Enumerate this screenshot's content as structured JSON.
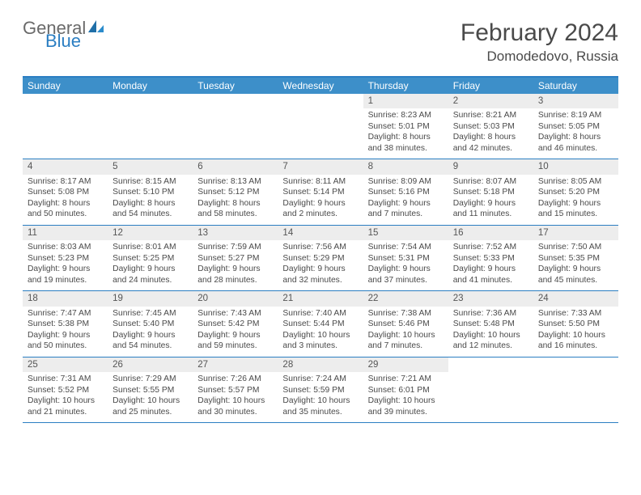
{
  "branding": {
    "logo_text_1": "General",
    "logo_text_2": "Blue",
    "logo_color_gray": "#6a6a6a",
    "logo_color_blue": "#2b7ec2"
  },
  "header": {
    "month_title": "February 2024",
    "location": "Domodedovo, Russia"
  },
  "colors": {
    "header_bar": "#3d8fc9",
    "border_blue": "#2b7ec2",
    "day_num_bg": "#ededed",
    "text": "#4a4a4a",
    "white": "#ffffff"
  },
  "day_headers": [
    "Sunday",
    "Monday",
    "Tuesday",
    "Wednesday",
    "Thursday",
    "Friday",
    "Saturday"
  ],
  "weeks": [
    [
      {
        "empty": true
      },
      {
        "empty": true
      },
      {
        "empty": true
      },
      {
        "empty": true
      },
      {
        "num": "1",
        "sunrise": "Sunrise: 8:23 AM",
        "sunset": "Sunset: 5:01 PM",
        "daylight": "Daylight: 8 hours and 38 minutes."
      },
      {
        "num": "2",
        "sunrise": "Sunrise: 8:21 AM",
        "sunset": "Sunset: 5:03 PM",
        "daylight": "Daylight: 8 hours and 42 minutes."
      },
      {
        "num": "3",
        "sunrise": "Sunrise: 8:19 AM",
        "sunset": "Sunset: 5:05 PM",
        "daylight": "Daylight: 8 hours and 46 minutes."
      }
    ],
    [
      {
        "num": "4",
        "sunrise": "Sunrise: 8:17 AM",
        "sunset": "Sunset: 5:08 PM",
        "daylight": "Daylight: 8 hours and 50 minutes."
      },
      {
        "num": "5",
        "sunrise": "Sunrise: 8:15 AM",
        "sunset": "Sunset: 5:10 PM",
        "daylight": "Daylight: 8 hours and 54 minutes."
      },
      {
        "num": "6",
        "sunrise": "Sunrise: 8:13 AM",
        "sunset": "Sunset: 5:12 PM",
        "daylight": "Daylight: 8 hours and 58 minutes."
      },
      {
        "num": "7",
        "sunrise": "Sunrise: 8:11 AM",
        "sunset": "Sunset: 5:14 PM",
        "daylight": "Daylight: 9 hours and 2 minutes."
      },
      {
        "num": "8",
        "sunrise": "Sunrise: 8:09 AM",
        "sunset": "Sunset: 5:16 PM",
        "daylight": "Daylight: 9 hours and 7 minutes."
      },
      {
        "num": "9",
        "sunrise": "Sunrise: 8:07 AM",
        "sunset": "Sunset: 5:18 PM",
        "daylight": "Daylight: 9 hours and 11 minutes."
      },
      {
        "num": "10",
        "sunrise": "Sunrise: 8:05 AM",
        "sunset": "Sunset: 5:20 PM",
        "daylight": "Daylight: 9 hours and 15 minutes."
      }
    ],
    [
      {
        "num": "11",
        "sunrise": "Sunrise: 8:03 AM",
        "sunset": "Sunset: 5:23 PM",
        "daylight": "Daylight: 9 hours and 19 minutes."
      },
      {
        "num": "12",
        "sunrise": "Sunrise: 8:01 AM",
        "sunset": "Sunset: 5:25 PM",
        "daylight": "Daylight: 9 hours and 24 minutes."
      },
      {
        "num": "13",
        "sunrise": "Sunrise: 7:59 AM",
        "sunset": "Sunset: 5:27 PM",
        "daylight": "Daylight: 9 hours and 28 minutes."
      },
      {
        "num": "14",
        "sunrise": "Sunrise: 7:56 AM",
        "sunset": "Sunset: 5:29 PM",
        "daylight": "Daylight: 9 hours and 32 minutes."
      },
      {
        "num": "15",
        "sunrise": "Sunrise: 7:54 AM",
        "sunset": "Sunset: 5:31 PM",
        "daylight": "Daylight: 9 hours and 37 minutes."
      },
      {
        "num": "16",
        "sunrise": "Sunrise: 7:52 AM",
        "sunset": "Sunset: 5:33 PM",
        "daylight": "Daylight: 9 hours and 41 minutes."
      },
      {
        "num": "17",
        "sunrise": "Sunrise: 7:50 AM",
        "sunset": "Sunset: 5:35 PM",
        "daylight": "Daylight: 9 hours and 45 minutes."
      }
    ],
    [
      {
        "num": "18",
        "sunrise": "Sunrise: 7:47 AM",
        "sunset": "Sunset: 5:38 PM",
        "daylight": "Daylight: 9 hours and 50 minutes."
      },
      {
        "num": "19",
        "sunrise": "Sunrise: 7:45 AM",
        "sunset": "Sunset: 5:40 PM",
        "daylight": "Daylight: 9 hours and 54 minutes."
      },
      {
        "num": "20",
        "sunrise": "Sunrise: 7:43 AM",
        "sunset": "Sunset: 5:42 PM",
        "daylight": "Daylight: 9 hours and 59 minutes."
      },
      {
        "num": "21",
        "sunrise": "Sunrise: 7:40 AM",
        "sunset": "Sunset: 5:44 PM",
        "daylight": "Daylight: 10 hours and 3 minutes."
      },
      {
        "num": "22",
        "sunrise": "Sunrise: 7:38 AM",
        "sunset": "Sunset: 5:46 PM",
        "daylight": "Daylight: 10 hours and 7 minutes."
      },
      {
        "num": "23",
        "sunrise": "Sunrise: 7:36 AM",
        "sunset": "Sunset: 5:48 PM",
        "daylight": "Daylight: 10 hours and 12 minutes."
      },
      {
        "num": "24",
        "sunrise": "Sunrise: 7:33 AM",
        "sunset": "Sunset: 5:50 PM",
        "daylight": "Daylight: 10 hours and 16 minutes."
      }
    ],
    [
      {
        "num": "25",
        "sunrise": "Sunrise: 7:31 AM",
        "sunset": "Sunset: 5:52 PM",
        "daylight": "Daylight: 10 hours and 21 minutes."
      },
      {
        "num": "26",
        "sunrise": "Sunrise: 7:29 AM",
        "sunset": "Sunset: 5:55 PM",
        "daylight": "Daylight: 10 hours and 25 minutes."
      },
      {
        "num": "27",
        "sunrise": "Sunrise: 7:26 AM",
        "sunset": "Sunset: 5:57 PM",
        "daylight": "Daylight: 10 hours and 30 minutes."
      },
      {
        "num": "28",
        "sunrise": "Sunrise: 7:24 AM",
        "sunset": "Sunset: 5:59 PM",
        "daylight": "Daylight: 10 hours and 35 minutes."
      },
      {
        "num": "29",
        "sunrise": "Sunrise: 7:21 AM",
        "sunset": "Sunset: 6:01 PM",
        "daylight": "Daylight: 10 hours and 39 minutes."
      },
      {
        "empty": true
      },
      {
        "empty": true
      }
    ]
  ]
}
